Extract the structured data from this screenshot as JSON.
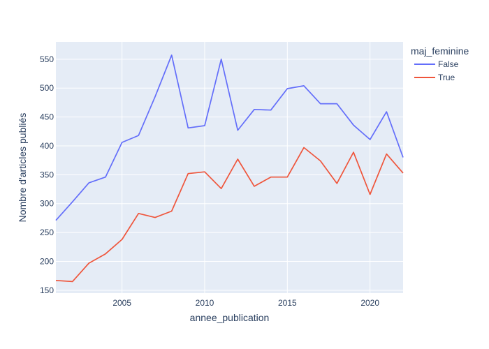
{
  "chart_data": {
    "type": "line",
    "title": "",
    "xlabel": "annee_publication",
    "ylabel": "Nombre d'articles publiés",
    "xlim": [
      2001,
      2022
    ],
    "ylim": [
      145,
      580
    ],
    "x_ticks": [
      2005,
      2010,
      2015,
      2020
    ],
    "y_ticks": [
      150,
      200,
      250,
      300,
      350,
      400,
      450,
      500,
      550
    ],
    "grid": true,
    "legend": {
      "title": "maj_feminine",
      "position": "top-right"
    },
    "x": [
      2001,
      2002,
      2003,
      2004,
      2005,
      2006,
      2007,
      2008,
      2009,
      2010,
      2011,
      2012,
      2013,
      2014,
      2015,
      2016,
      2017,
      2018,
      2019,
      2020,
      2021,
      2022
    ],
    "series": [
      {
        "name": "False",
        "color": "#636efa",
        "values": [
          271,
          303,
          336,
          346,
          406,
          418,
          485,
          557,
          431,
          435,
          550,
          427,
          463,
          462,
          499,
          504,
          473,
          473,
          436,
          411,
          459,
          380
        ]
      },
      {
        "name": "True",
        "color": "#ef553b",
        "values": [
          167,
          165,
          197,
          213,
          238,
          283,
          276,
          287,
          352,
          355,
          326,
          377,
          330,
          346,
          346,
          397,
          374,
          335,
          389,
          316,
          386,
          353
        ]
      }
    ]
  },
  "colors": {
    "plot_background": "#e5ecf6",
    "gridline": "#ffffff",
    "text": "#2a3f5f"
  }
}
